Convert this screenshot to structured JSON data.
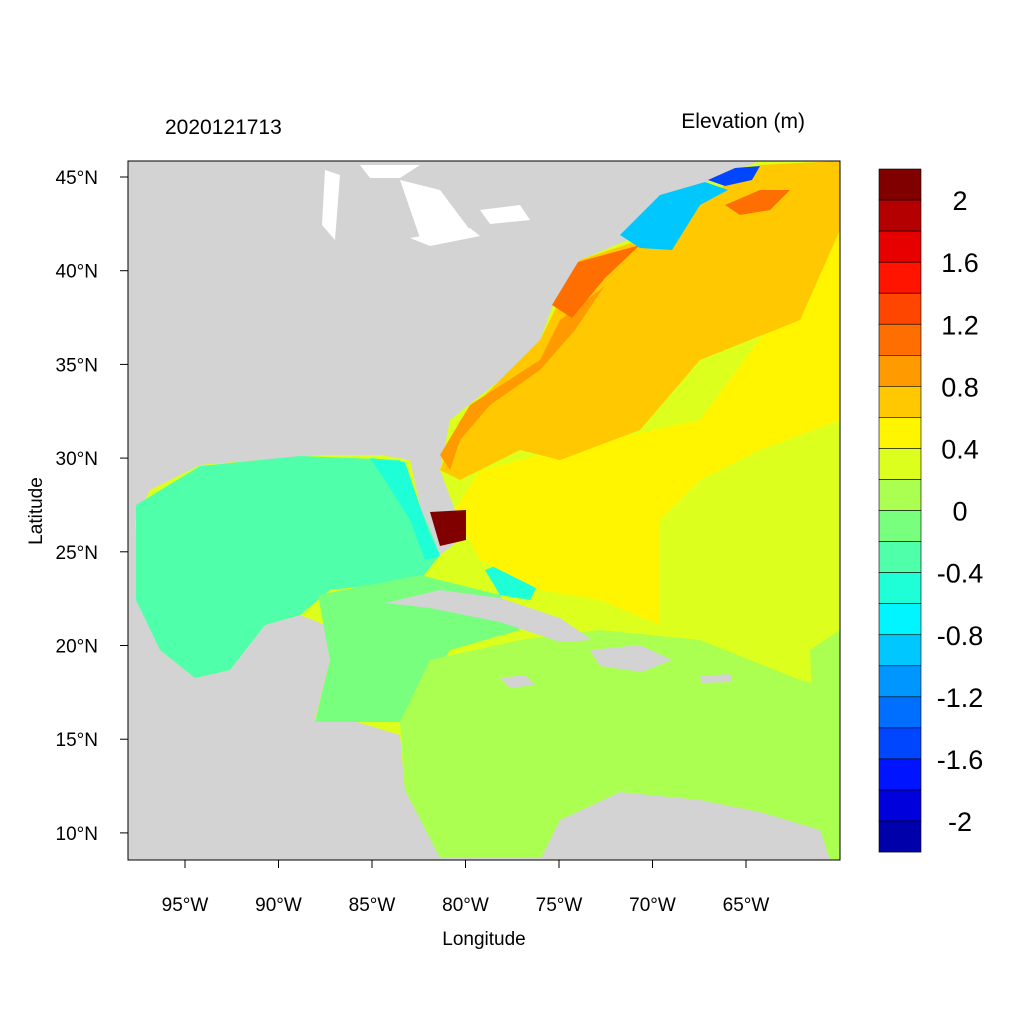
{
  "header": {
    "timestamp": "2020121713",
    "variable_title": "Elevation (m)"
  },
  "axes": {
    "xlabel": "Longitude",
    "ylabel": "Latitude",
    "x_ticks": [
      {
        "value": -95,
        "label": "95°W"
      },
      {
        "value": -90,
        "label": "90°W"
      },
      {
        "value": -85,
        "label": "85°W"
      },
      {
        "value": -80,
        "label": "80°W"
      },
      {
        "value": -75,
        "label": "75°W"
      },
      {
        "value": -70,
        "label": "70°W"
      },
      {
        "value": -65,
        "label": "65°W"
      }
    ],
    "y_ticks": [
      {
        "value": 45,
        "label": "45°N"
      },
      {
        "value": 40,
        "label": "40°N"
      },
      {
        "value": 35,
        "label": "35°N"
      },
      {
        "value": 30,
        "label": "30°N"
      },
      {
        "value": 25,
        "label": "25°N"
      },
      {
        "value": 20,
        "label": "20°N"
      },
      {
        "value": 15,
        "label": "15°N"
      },
      {
        "value": 10,
        "label": "10°N"
      }
    ],
    "xlim": [
      -98,
      -60
    ],
    "ylim": [
      8.6,
      45.8
    ]
  },
  "colorbar": {
    "boundaries": [
      2,
      1.8,
      1.6,
      1.4,
      1.2,
      1,
      0.8,
      0.6,
      0.4,
      0.2,
      0,
      -0.2,
      -0.4,
      -0.6,
      -0.8,
      -1,
      -1.2,
      -1.4,
      -1.6,
      -1.8,
      -2
    ],
    "labels": [
      {
        "value": 2,
        "label": "2"
      },
      {
        "value": 1.6,
        "label": "1.6"
      },
      {
        "value": 1.2,
        "label": "1.2"
      },
      {
        "value": 0.8,
        "label": "0.8"
      },
      {
        "value": 0.4,
        "label": "0.4"
      },
      {
        "value": 0,
        "label": "0"
      },
      {
        "value": -0.4,
        "label": "-0.4"
      },
      {
        "value": -0.8,
        "label": "-0.8"
      },
      {
        "value": -1.2,
        "label": "-1.2"
      },
      {
        "value": -1.6,
        "label": "-1.6"
      },
      {
        "value": -2,
        "label": "-2"
      }
    ],
    "colors": [
      "#800000",
      "#B40000",
      "#E60000",
      "#FF1400",
      "#FF4600",
      "#FF6E00",
      "#FF9B00",
      "#FFC800",
      "#FFF500",
      "#DCFF1E",
      "#AAFF50",
      "#78FF7D",
      "#50FFAA",
      "#1EFFD7",
      "#00F5FF",
      "#00C8FF",
      "#0096FF",
      "#006EFF",
      "#0046FF",
      "#0014FF",
      "#0000DC",
      "#0000AA"
    ]
  },
  "map": {
    "land_color": "#D3D3D3",
    "lake_color": "#FFFFFF"
  }
}
